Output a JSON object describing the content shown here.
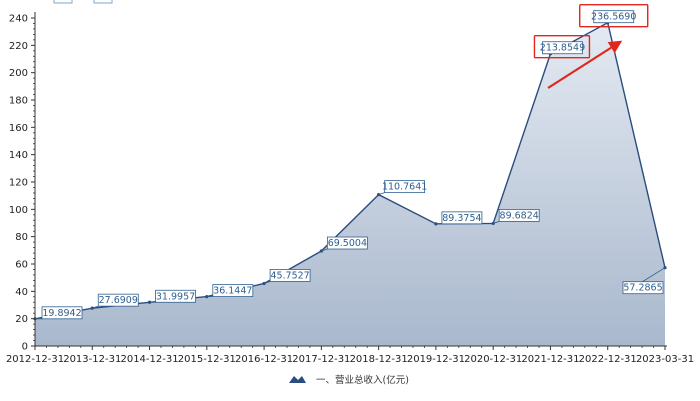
{
  "chart_data": {
    "type": "area",
    "categories": [
      "2012-12-31",
      "2013-12-31",
      "2014-12-31",
      "2015-12-31",
      "2016-12-31",
      "2017-12-31",
      "2018-12-31",
      "2019-12-31",
      "2020-12-31",
      "2021-12-31",
      "2022-12-31",
      "2023-03-31"
    ],
    "series": [
      {
        "name": "一、营业总收入(亿元)",
        "values": [
          19.8942,
          27.6909,
          31.9957,
          36.1447,
          45.7527,
          69.5004,
          110.7641,
          89.3754,
          89.6824,
          213.8549,
          236.569,
          57.2865
        ]
      }
    ],
    "data_labels": [
      "19.8942",
      "27.6909",
      "31.9957",
      "36.1447",
      "45.7527",
      "69.5004",
      "110.7641",
      "89.3754",
      "89.6824",
      "213.8549",
      "236.5690",
      "57.2865"
    ],
    "yticks": [
      0,
      20,
      40,
      60,
      80,
      100,
      120,
      140,
      160,
      180,
      200,
      220,
      240
    ],
    "ylim": [
      0,
      240
    ],
    "grid": false,
    "legend_position": "bottom-center",
    "highlighted_labels": [
      "213.8549",
      "236.5690"
    ],
    "colors": {
      "line": "#2a4d7f",
      "area_top": "#dfe6ef",
      "area_bottom": "#aab9cf",
      "label_text": "#2f5f8f",
      "label_border": "#2f5f8f",
      "highlight_box": "#e0261d",
      "arrow": "#e0261d",
      "axis": "#333333"
    }
  }
}
